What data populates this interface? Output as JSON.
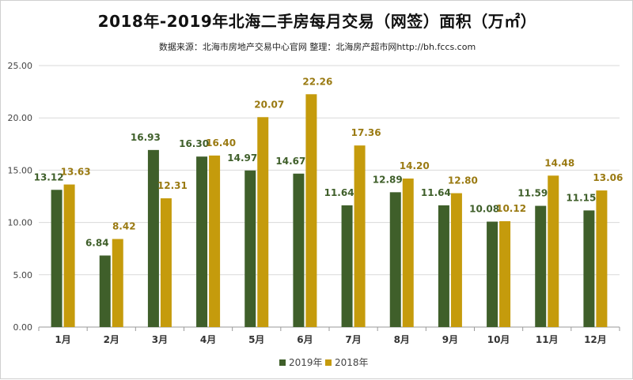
{
  "chart_data": {
    "type": "bar",
    "title": "2018年-2019年北海二手房每月交易（网签）面积（万㎡）",
    "subtitle": "数据来源：北海市房地产交易中心官网   整理：北海房产超市网http://bh.fccs.com",
    "categories": [
      "1月",
      "2月",
      "3月",
      "4月",
      "5月",
      "6月",
      "7月",
      "8月",
      "9月",
      "10月",
      "11月",
      "12月"
    ],
    "series": [
      {
        "name": "2019年",
        "color": "#3f5f2a",
        "label_color": "#3f5f2a",
        "values": [
          13.12,
          6.84,
          16.93,
          16.3,
          14.97,
          14.67,
          11.64,
          12.89,
          11.64,
          10.08,
          11.59,
          11.15
        ]
      },
      {
        "name": "2018年",
        "color": "#c59b0c",
        "label_color": "#9a7a12",
        "values": [
          13.63,
          8.42,
          12.31,
          16.4,
          20.07,
          22.26,
          17.36,
          14.2,
          12.8,
          10.12,
          14.48,
          13.06
        ]
      }
    ],
    "ylim": [
      0,
      25
    ],
    "yticks": [
      "0.00",
      "5.00",
      "10.00",
      "15.00",
      "20.00",
      "25.00"
    ],
    "grid": true,
    "legend_position": "bottom"
  }
}
